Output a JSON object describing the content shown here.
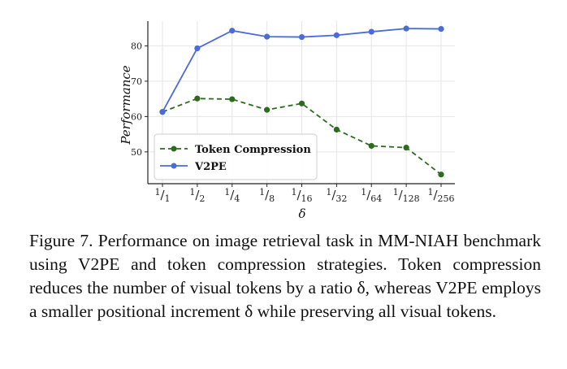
{
  "chart_data": {
    "type": "line",
    "categories": [
      "1/1",
      "1/2",
      "1/4",
      "1/8",
      "1/16",
      "1/32",
      "1/64",
      "1/128",
      "1/256"
    ],
    "series": [
      {
        "name": "Token Compression",
        "values": [
          61.3,
          65.1,
          64.9,
          61.9,
          63.7,
          56.3,
          51.7,
          51.2,
          43.6
        ],
        "color": "#2e6b1e",
        "dashed": true
      },
      {
        "name": "V2PE",
        "values": [
          61.3,
          79.3,
          84.3,
          82.6,
          82.5,
          83.0,
          84.0,
          84.9,
          84.8
        ],
        "color": "#4b6bd6",
        "dashed": false
      }
    ],
    "xlabel": "δ",
    "ylabel": "Performance",
    "ylim": [
      41,
      87
    ],
    "yticks": [
      50,
      60,
      70,
      80
    ],
    "grid": true,
    "legend_position": "lower-left"
  },
  "caption": "Figure 7.  Performance on image retrieval task in MM-NIAH benchmark using V2PE and token compression strategies.  Token compression reduces the number of visual tokens by a ratio δ, whereas V2PE employs a smaller positional increment δ while preserving all visual tokens."
}
